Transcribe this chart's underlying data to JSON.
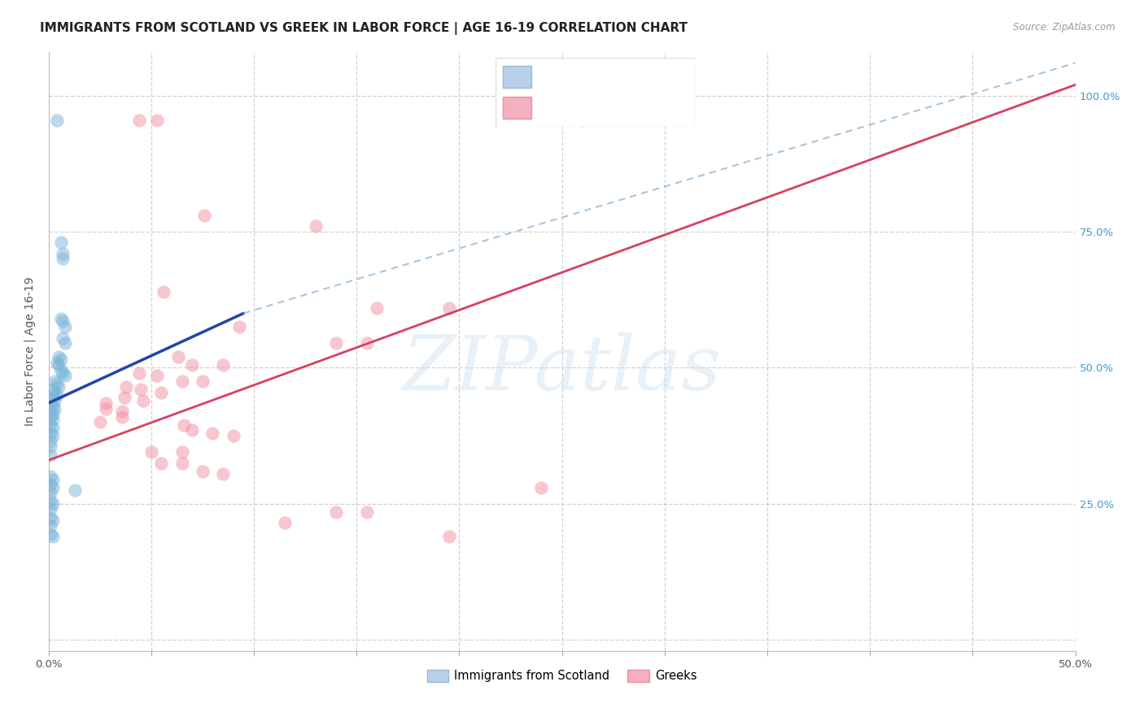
{
  "title": "IMMIGRANTS FROM SCOTLAND VS GREEK IN LABOR FORCE | AGE 16-19 CORRELATION CHART",
  "source": "Source: ZipAtlas.com",
  "ylabel": "In Labor Force | Age 16-19",
  "xlim": [
    0.0,
    0.5
  ],
  "ylim": [
    -0.02,
    1.08
  ],
  "ytick_positions": [
    0.0,
    0.25,
    0.5,
    0.75,
    1.0
  ],
  "ytick_labels": [
    "",
    "25.0%",
    "50.0%",
    "75.0%",
    "100.0%"
  ],
  "scotland_color": "#7ab4d8",
  "greek_color": "#f090a0",
  "scotland_trendline_solid_color": "#2244aa",
  "scotland_trendline_dash_color": "#99bbd8",
  "greek_trendline_color": "#d84060",
  "watermark_text": "ZIPatlas",
  "legend_R_color": "#1155cc",
  "legend_N_color": "#cc1133",
  "scotland_trendline": [
    [
      0.0,
      0.435
    ],
    [
      0.095,
      0.6
    ]
  ],
  "scotland_trendline_dashed": [
    [
      0.095,
      0.6
    ],
    [
      0.5,
      1.06
    ]
  ],
  "greek_trendline": [
    [
      0.0,
      0.33
    ],
    [
      0.5,
      1.02
    ]
  ],
  "scotland_points": [
    [
      0.004,
      0.955
    ],
    [
      0.006,
      0.73
    ],
    [
      0.007,
      0.71
    ],
    [
      0.007,
      0.7
    ],
    [
      0.006,
      0.59
    ],
    [
      0.007,
      0.585
    ],
    [
      0.008,
      0.575
    ],
    [
      0.007,
      0.555
    ],
    [
      0.008,
      0.545
    ],
    [
      0.005,
      0.52
    ],
    [
      0.006,
      0.515
    ],
    [
      0.004,
      0.51
    ],
    [
      0.005,
      0.505
    ],
    [
      0.006,
      0.495
    ],
    [
      0.007,
      0.49
    ],
    [
      0.008,
      0.485
    ],
    [
      0.003,
      0.475
    ],
    [
      0.004,
      0.47
    ],
    [
      0.005,
      0.465
    ],
    [
      0.002,
      0.46
    ],
    [
      0.003,
      0.455
    ],
    [
      0.004,
      0.45
    ],
    [
      0.002,
      0.445
    ],
    [
      0.003,
      0.44
    ],
    [
      0.001,
      0.435
    ],
    [
      0.002,
      0.43
    ],
    [
      0.003,
      0.425
    ],
    [
      0.001,
      0.42
    ],
    [
      0.002,
      0.415
    ],
    [
      0.001,
      0.41
    ],
    [
      0.002,
      0.405
    ],
    [
      0.001,
      0.395
    ],
    [
      0.002,
      0.39
    ],
    [
      0.001,
      0.38
    ],
    [
      0.002,
      0.375
    ],
    [
      0.001,
      0.365
    ],
    [
      0.001,
      0.355
    ],
    [
      0.001,
      0.34
    ],
    [
      0.001,
      0.3
    ],
    [
      0.002,
      0.295
    ],
    [
      0.001,
      0.285
    ],
    [
      0.002,
      0.28
    ],
    [
      0.001,
      0.27
    ],
    [
      0.001,
      0.255
    ],
    [
      0.002,
      0.25
    ],
    [
      0.001,
      0.24
    ],
    [
      0.001,
      0.225
    ],
    [
      0.002,
      0.22
    ],
    [
      0.001,
      0.21
    ],
    [
      0.013,
      0.275
    ],
    [
      0.001,
      0.195
    ],
    [
      0.002,
      0.19
    ]
  ],
  "greek_points": [
    [
      0.044,
      0.955
    ],
    [
      0.053,
      0.955
    ],
    [
      0.26,
      0.955
    ],
    [
      0.076,
      0.78
    ],
    [
      0.13,
      0.76
    ],
    [
      0.056,
      0.64
    ],
    [
      0.16,
      0.61
    ],
    [
      0.195,
      0.61
    ],
    [
      0.093,
      0.575
    ],
    [
      0.14,
      0.545
    ],
    [
      0.155,
      0.545
    ],
    [
      0.063,
      0.52
    ],
    [
      0.07,
      0.505
    ],
    [
      0.085,
      0.505
    ],
    [
      0.044,
      0.49
    ],
    [
      0.053,
      0.485
    ],
    [
      0.065,
      0.475
    ],
    [
      0.075,
      0.475
    ],
    [
      0.038,
      0.465
    ],
    [
      0.045,
      0.46
    ],
    [
      0.055,
      0.455
    ],
    [
      0.037,
      0.445
    ],
    [
      0.046,
      0.44
    ],
    [
      0.028,
      0.435
    ],
    [
      0.028,
      0.425
    ],
    [
      0.036,
      0.42
    ],
    [
      0.036,
      0.41
    ],
    [
      0.025,
      0.4
    ],
    [
      0.066,
      0.395
    ],
    [
      0.07,
      0.385
    ],
    [
      0.08,
      0.38
    ],
    [
      0.09,
      0.375
    ],
    [
      0.05,
      0.345
    ],
    [
      0.065,
      0.345
    ],
    [
      0.055,
      0.325
    ],
    [
      0.065,
      0.325
    ],
    [
      0.075,
      0.31
    ],
    [
      0.085,
      0.305
    ],
    [
      0.24,
      0.28
    ],
    [
      0.14,
      0.235
    ],
    [
      0.155,
      0.235
    ],
    [
      0.115,
      0.215
    ],
    [
      0.195,
      0.19
    ]
  ],
  "title_fontsize": 11,
  "axis_label_fontsize": 10,
  "tick_fontsize": 9.5
}
